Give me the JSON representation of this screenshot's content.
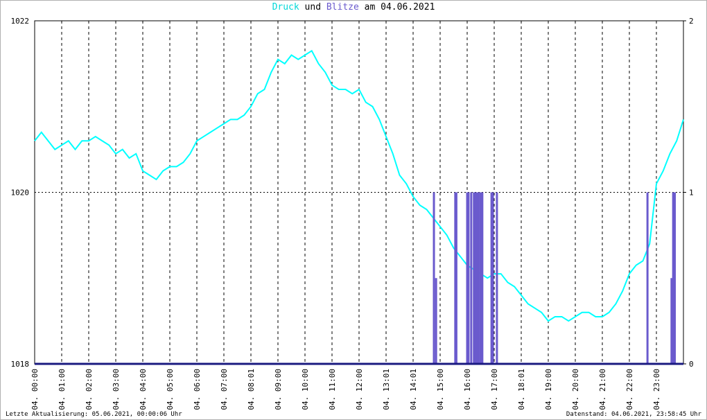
{
  "chart_data": {
    "type": "line",
    "title_parts": [
      "und",
      "am 04.06.2021"
    ],
    "series": [
      {
        "name": "Druck",
        "color": "#00ffff",
        "x": [
          0,
          0.25,
          0.5,
          0.75,
          1,
          1.25,
          1.5,
          1.75,
          2,
          2.25,
          2.5,
          2.75,
          3,
          3.25,
          3.5,
          3.75,
          4,
          4.25,
          4.5,
          4.75,
          5,
          5.25,
          5.5,
          5.75,
          6,
          6.25,
          6.5,
          6.75,
          7,
          7.25,
          7.5,
          7.75,
          8,
          8.25,
          8.5,
          8.75,
          9,
          9.25,
          9.5,
          9.75,
          10,
          10.25,
          10.5,
          10.75,
          11,
          11.25,
          11.5,
          11.75,
          12,
          12.25,
          12.5,
          12.75,
          13,
          13.25,
          13.5,
          13.75,
          14,
          14.25,
          14.5,
          14.75,
          15,
          15.25,
          15.5,
          15.75,
          16,
          16.25,
          16.5,
          16.75,
          17,
          17.25,
          17.5,
          17.75,
          18,
          18.25,
          18.5,
          18.75,
          19,
          19.25,
          19.5,
          19.75,
          20,
          20.25,
          20.5,
          20.75,
          21,
          21.25,
          21.5,
          21.75,
          22,
          22.25,
          22.5,
          22.75,
          23,
          23.25,
          23.5,
          23.75,
          24
        ],
        "values": [
          1020.6,
          1020.7,
          1020.6,
          1020.5,
          1020.55,
          1020.6,
          1020.5,
          1020.6,
          1020.6,
          1020.65,
          1020.6,
          1020.55,
          1020.45,
          1020.5,
          1020.4,
          1020.45,
          1020.25,
          1020.2,
          1020.15,
          1020.25,
          1020.3,
          1020.3,
          1020.35,
          1020.45,
          1020.6,
          1020.65,
          1020.7,
          1020.75,
          1020.8,
          1020.85,
          1020.85,
          1020.9,
          1021.0,
          1021.15,
          1021.2,
          1021.4,
          1021.55,
          1021.5,
          1021.6,
          1021.55,
          1021.6,
          1021.65,
          1021.5,
          1021.4,
          1021.25,
          1021.2,
          1021.2,
          1021.15,
          1021.2,
          1021.05,
          1021.0,
          1020.85,
          1020.65,
          1020.45,
          1020.2,
          1020.1,
          1019.95,
          1019.85,
          1019.8,
          1019.7,
          1019.6,
          1019.5,
          1019.35,
          1019.25,
          1019.15,
          1019.1,
          1019.05,
          1019.0,
          1019.05,
          1019.05,
          1018.95,
          1018.9,
          1018.8,
          1018.7,
          1018.65,
          1018.6,
          1018.5,
          1018.55,
          1018.55,
          1018.5,
          1018.55,
          1018.6,
          1018.6,
          1018.55,
          1018.55,
          1018.6,
          1018.7,
          1018.85,
          1019.05,
          1019.15,
          1019.2,
          1019.4,
          1020.1,
          1020.25,
          1020.45,
          1020.6,
          1020.85
        ]
      },
      {
        "name": "Blitze",
        "color": "#6a5acd",
        "axis": "y2",
        "type": "bar",
        "x": [
          14.77,
          14.85,
          15.56,
          15.6,
          16.0,
          16.05,
          16.15,
          16.25,
          16.3,
          16.36,
          16.42,
          16.49,
          16.56,
          16.9,
          16.95,
          17.1,
          22.67,
          23.56,
          23.62,
          23.68
        ],
        "values": [
          1,
          0.5,
          1,
          1,
          1,
          1,
          1,
          1,
          1,
          1,
          1,
          1,
          1,
          1,
          1,
          1,
          1,
          0.5,
          1,
          1
        ]
      }
    ],
    "xlim": [
      0,
      24
    ],
    "xticks": [
      {
        "value": 0,
        "label": "04. 00:00"
      },
      {
        "value": 1,
        "label": "04. 01:00"
      },
      {
        "value": 2,
        "label": "04. 02:00"
      },
      {
        "value": 3,
        "label": "04. 03:00"
      },
      {
        "value": 4,
        "label": "04. 04:00"
      },
      {
        "value": 5,
        "label": "04. 05:00"
      },
      {
        "value": 6,
        "label": "04. 06:00"
      },
      {
        "value": 7,
        "label": "04. 07:00"
      },
      {
        "value": 8,
        "label": "04. 08:01"
      },
      {
        "value": 9,
        "label": "04. 09:00"
      },
      {
        "value": 10,
        "label": "04. 10:00"
      },
      {
        "value": 11,
        "label": "04. 11:00"
      },
      {
        "value": 12,
        "label": "04. 12:00"
      },
      {
        "value": 13,
        "label": "04. 13:01"
      },
      {
        "value": 14,
        "label": "04. 14:01"
      },
      {
        "value": 15,
        "label": "04. 15:00"
      },
      {
        "value": 16,
        "label": "04. 16:00"
      },
      {
        "value": 17,
        "label": "04. 17:00"
      },
      {
        "value": 18,
        "label": "04. 18:01"
      },
      {
        "value": 19,
        "label": "04. 19:00"
      },
      {
        "value": 20,
        "label": "04. 20:00"
      },
      {
        "value": 21,
        "label": "04. 21:00"
      },
      {
        "value": 22,
        "label": "04. 22:00"
      },
      {
        "value": 23,
        "label": "04. 23:00"
      }
    ],
    "ylim": [
      1018,
      1022
    ],
    "yticks": [
      1018,
      1020,
      1022
    ],
    "y2lim": [
      0,
      2
    ],
    "y2ticks": [
      0,
      1,
      2
    ],
    "grid": true,
    "footer_left": "Letzte Aktualisierung: 05.06.2021, 00:00:06 Uhr",
    "footer_right": "Datenstand: 04.06.2021, 23:58:45 Uhr"
  }
}
